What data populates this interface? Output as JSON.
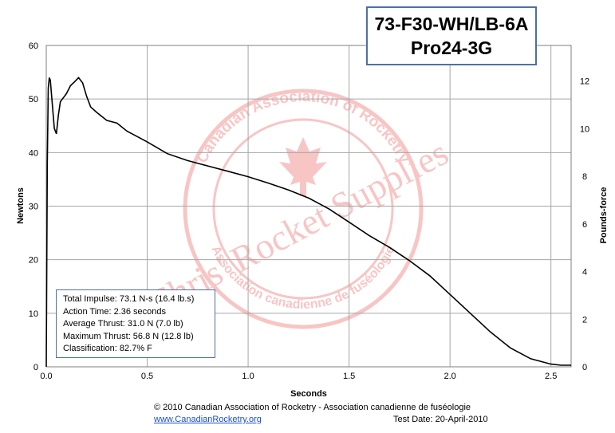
{
  "chart_data": {
    "type": "line",
    "title": [
      "73-F30-WH/LB-6A",
      "Pro24-3G"
    ],
    "xlabel": "Seconds",
    "ylabel": "Newtons",
    "y2label": "Pounds-force",
    "xlim": [
      0,
      2.6
    ],
    "ylim": [
      0,
      60
    ],
    "y2lim": [
      0,
      13.49
    ],
    "xticks": [
      "0.0",
      "0.5",
      "1.0",
      "1.5",
      "2.0",
      "2.5"
    ],
    "yticks": [
      "0",
      "10",
      "20",
      "30",
      "40",
      "50",
      "60"
    ],
    "y2ticks": [
      "0",
      "2",
      "4",
      "6",
      "8",
      "10",
      "12"
    ],
    "grid": true,
    "series": [
      {
        "x": [
          0,
          0.005,
          0.01,
          0.015,
          0.02,
          0.03,
          0.04,
          0.05,
          0.06,
          0.07,
          0.08,
          0.1,
          0.12,
          0.14,
          0.16,
          0.18,
          0.2,
          0.22,
          0.25,
          0.3,
          0.35,
          0.4,
          0.45,
          0.5,
          0.6,
          0.7,
          0.8,
          0.9,
          1.0,
          1.1,
          1.2,
          1.3,
          1.4,
          1.5,
          1.6,
          1.7,
          1.8,
          1.9,
          2.0,
          2.1,
          2.2,
          2.3,
          2.4,
          2.5,
          2.55,
          2.6
        ],
        "y": [
          0,
          38,
          52,
          54,
          53.5,
          49,
          44.5,
          43.5,
          47,
          49.5,
          50,
          51,
          52.5,
          53.2,
          54,
          53,
          50.5,
          48.5,
          47.5,
          46,
          45.5,
          44,
          43,
          42,
          39.8,
          38.5,
          37.5,
          36.5,
          35.5,
          34.3,
          33,
          31.5,
          29.5,
          27,
          24.5,
          22.3,
          19.8,
          17,
          13.5,
          10,
          6.5,
          3.5,
          1.5,
          0.5,
          0.3,
          0.3
        ]
      }
    ]
  },
  "info": {
    "impulse": "Total Impulse: 73.1 N-s (16.4 lb.s)",
    "action_time": "Action Time: 2.36 seconds",
    "avg_thrust": "Average Thrust: 31.0 N (7.0 lb)",
    "max_thrust": "Maximum Thrust: 56.8 N (12.8 lb)",
    "classification": "Classification: 82.7% F"
  },
  "watermark": {
    "ring_top": "Canadian Association of Rocketry",
    "ring_bottom": "Association canadienne de fuséologie",
    "diagonal": "Chris' Rocket Supplies"
  },
  "footer": {
    "copyright": "© 2010 Canadian Association of Rocketry - Association canadienne de fuséologie",
    "link": "www.CanadianRocketry.org",
    "test_date": "Test  Date: 20-April-2010"
  },
  "colors": {
    "line": "#000000",
    "grid": "#a6a6a6",
    "box_border": "#4f6fa8",
    "watermark": "#f08080",
    "link": "#1a4fc4"
  }
}
